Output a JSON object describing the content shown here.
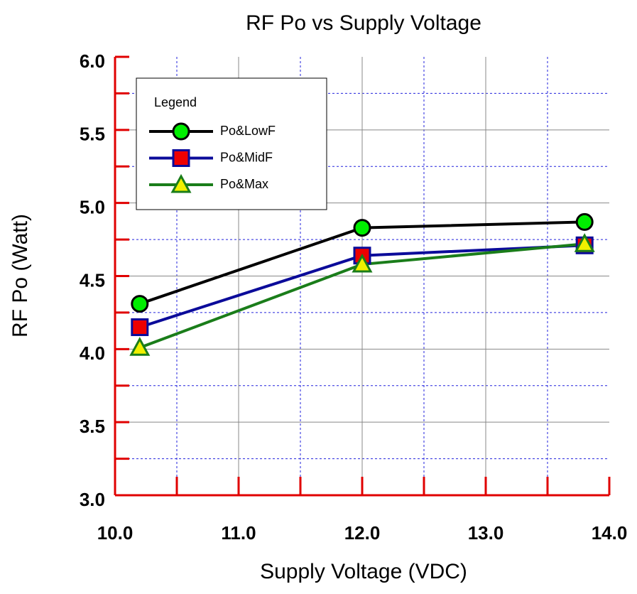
{
  "chart_data": {
    "type": "line",
    "title": "RF Po vs Supply Voltage",
    "xlabel": "Supply Voltage (VDC)",
    "ylabel": "RF Po (Watt)",
    "x": [
      10.2,
      12.0,
      13.8
    ],
    "series": [
      {
        "name": "Po&LowF",
        "color": "#000000",
        "marker": "circle",
        "marker_fill": "#00ee00",
        "values": [
          4.31,
          4.83,
          4.87
        ]
      },
      {
        "name": "Po&MidF",
        "color": "#0b0b9a",
        "marker": "square",
        "marker_fill": "#ee0000",
        "values": [
          4.15,
          4.64,
          4.71
        ]
      },
      {
        "name": "Po&Max",
        "color": "#1a7d1a",
        "marker": "triangle",
        "marker_fill": "#f0f000",
        "values": [
          4.01,
          4.58,
          4.72
        ]
      }
    ],
    "xlim": [
      10,
      14
    ],
    "xticks": [
      {
        "value": 10,
        "label": "10.0"
      },
      {
        "value": 11,
        "label": "11.0"
      },
      {
        "value": 12,
        "label": "12.0"
      },
      {
        "value": 13,
        "label": "13.0"
      },
      {
        "value": 14,
        "label": "14.0"
      }
    ],
    "minor_xticks": [
      10.5,
      11.5,
      12.5,
      13.5
    ],
    "ylim": [
      3,
      6
    ],
    "yticks": [
      {
        "value": 3,
        "label": "3.0"
      },
      {
        "value": 3.5,
        "label": "3.5"
      },
      {
        "value": 4,
        "label": "4.0"
      },
      {
        "value": 4.5,
        "label": "4.5"
      },
      {
        "value": 5,
        "label": "5.0"
      },
      {
        "value": 5.5,
        "label": "5.5"
      },
      {
        "value": 6,
        "label": "6.0"
      }
    ],
    "minor_yticks": [
      3.25,
      3.75,
      4.25,
      4.75,
      5.25,
      5.75
    ],
    "grid": true,
    "axis_color": "#e00000",
    "legend": {
      "title": "Legend",
      "position": "upper left"
    }
  }
}
